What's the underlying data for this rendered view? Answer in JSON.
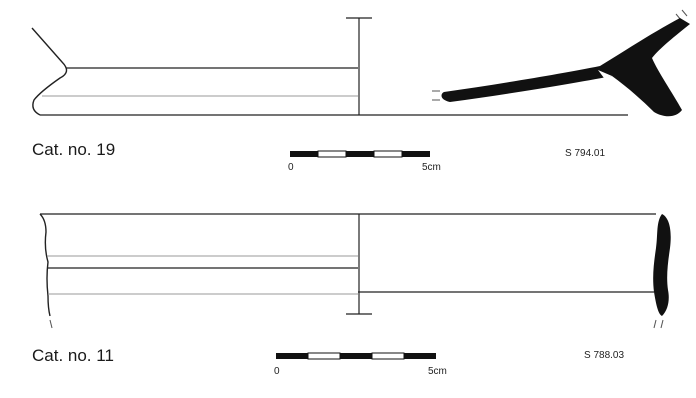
{
  "colors": {
    "ink": "#111111",
    "line": "#222222",
    "inner_line": "#9a9a9a",
    "background": "#ffffff"
  },
  "catalogue": [
    {
      "caption": "Cat. no. 19",
      "sherd_id": "S 794.01",
      "scale": {
        "start_label": "0",
        "end_label": "5cm"
      }
    },
    {
      "caption": "Cat. no. 11",
      "sherd_id": "S 788.03",
      "scale": {
        "start_label": "0",
        "end_label": "5cm"
      }
    }
  ]
}
